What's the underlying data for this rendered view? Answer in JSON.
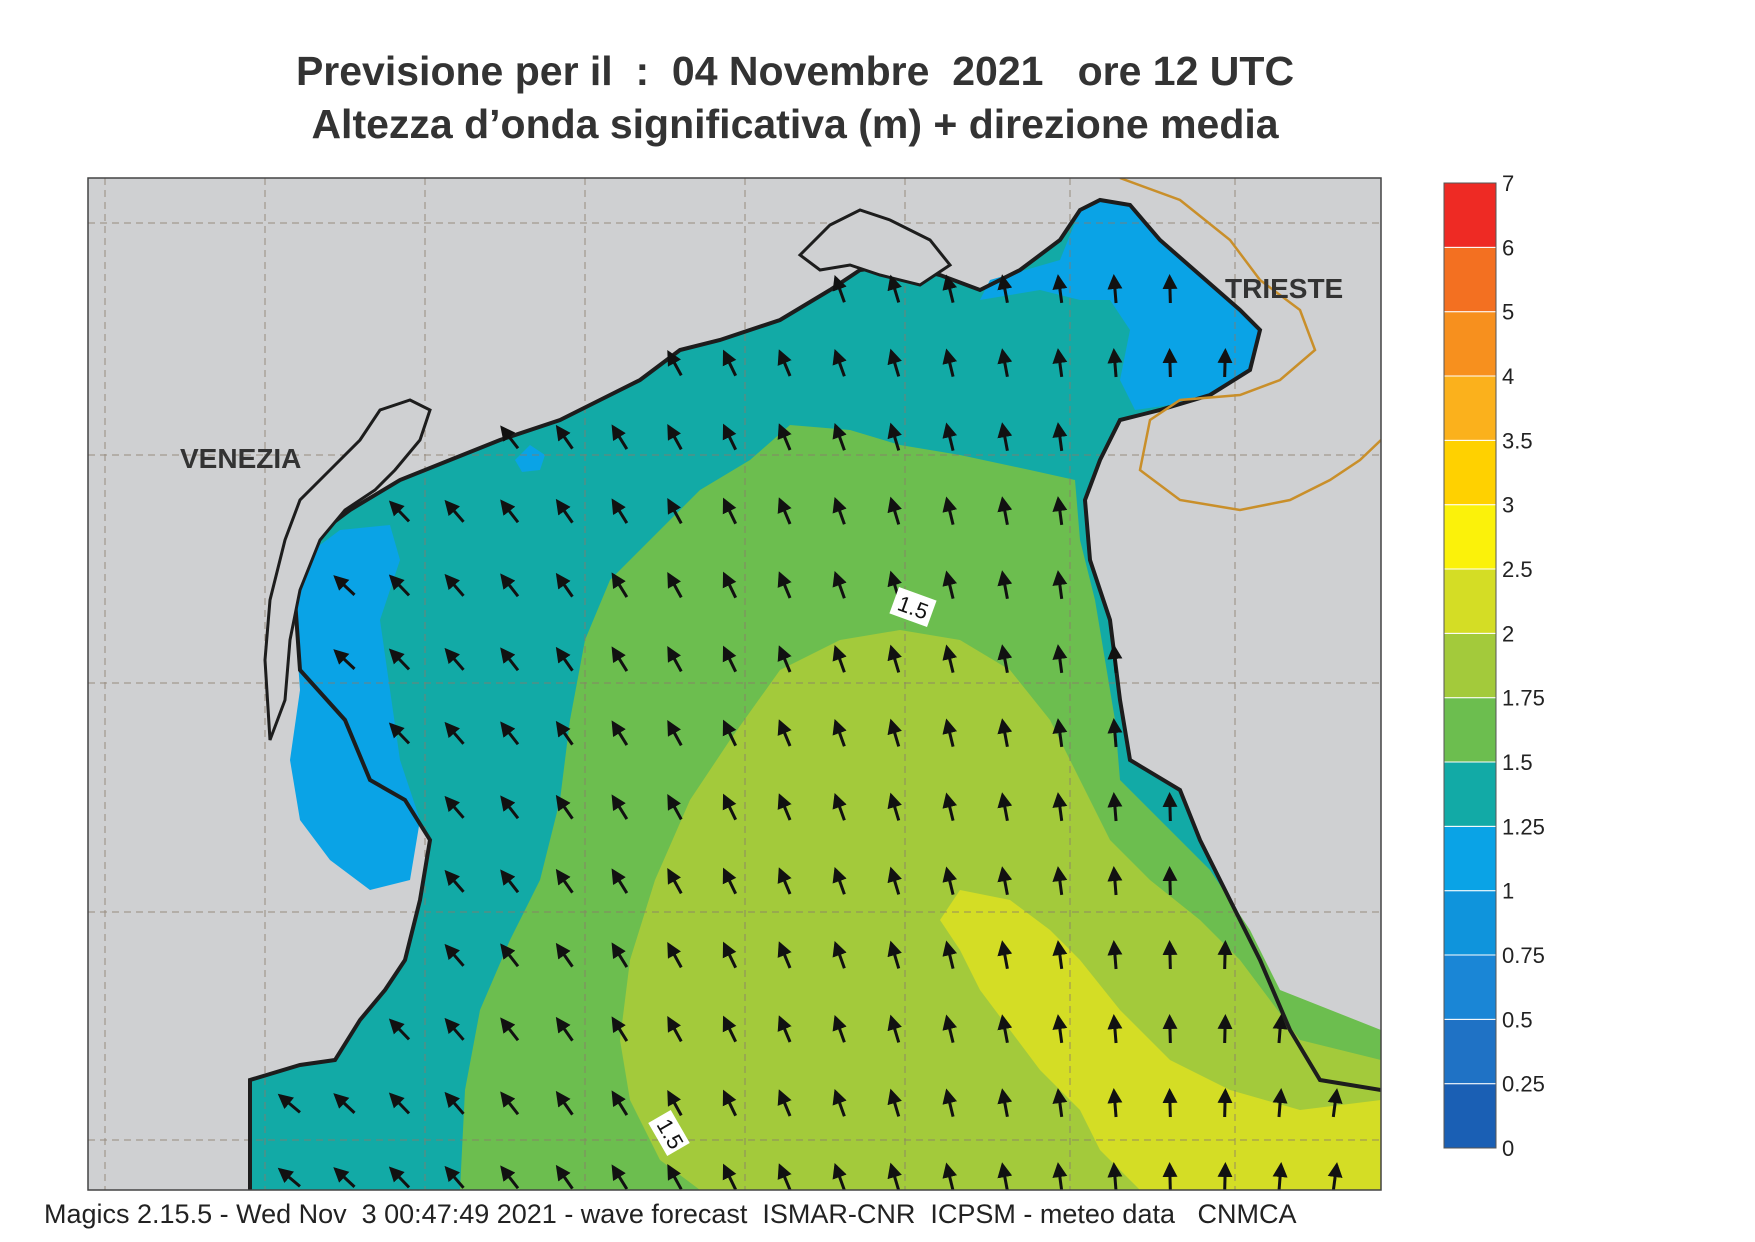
{
  "title_line1": "Previsione per il  :  04 Novembre  2021   ore 12 UTC",
  "title_line2": "Altezza d’onda significativa (m) + direzione media",
  "footer": "Magics 2.15.5 - Wed Nov  3 00:47:49 2021 - wave forecast  ISMAR-CNR  ICPSM - meteo data   CNMCA",
  "cities": {
    "venezia": "VENEZIA",
    "trieste": "TRIESTE"
  },
  "contour_labels": [
    "1.5",
    "1.5"
  ],
  "colorbar": [
    {
      "label": "0",
      "color": "#1a5fb4"
    },
    {
      "label": "0.25",
      "color": "#1f72c5"
    },
    {
      "label": "0.5",
      "color": "#1a86d6"
    },
    {
      "label": "0.75",
      "color": "#0f94dc"
    },
    {
      "label": "1",
      "color": "#0aa3e6"
    },
    {
      "label": "1.25",
      "color": "#12aaa6"
    },
    {
      "label": "1.5",
      "color": "#6cbe4f"
    },
    {
      "label": "1.75",
      "color": "#a3ca3b"
    },
    {
      "label": "2",
      "color": "#d4dd25"
    },
    {
      "label": "2.5",
      "color": "#fbf20a"
    },
    {
      "label": "3",
      "color": "#ffd100"
    },
    {
      "label": "3.5",
      "color": "#fbb11c"
    },
    {
      "label": "4",
      "color": "#f7901e"
    },
    {
      "label": "5",
      "color": "#f37021"
    },
    {
      "label": "6",
      "color": "#ee2a24"
    },
    {
      "label": "7",
      "color": "#ec1c7b"
    }
  ],
  "colors": {
    "land": "#cfd0d2",
    "coast": "#1d1d1d",
    "border": "#c98f2a",
    "arrow": "#111111"
  }
}
